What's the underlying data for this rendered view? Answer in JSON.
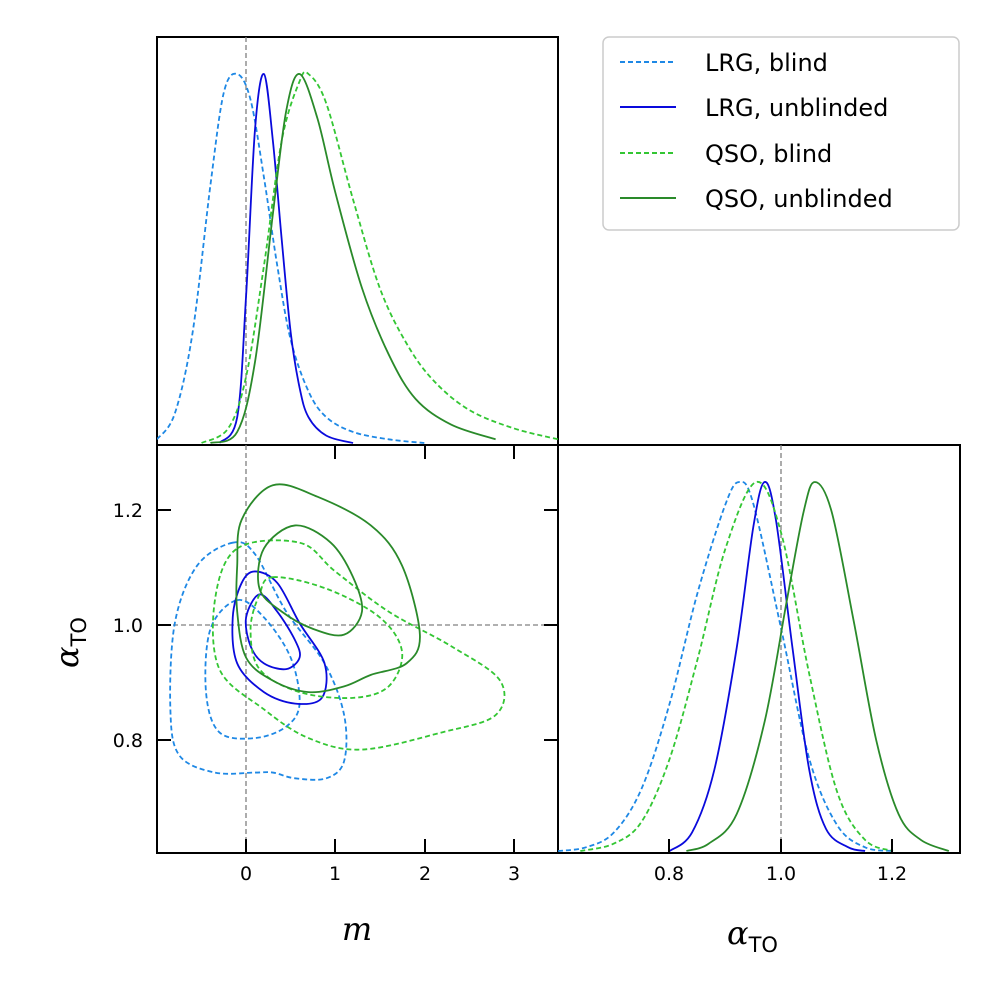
{
  "chart_data": {
    "type": "corner-plot",
    "series": [
      {
        "name": "LRG, blind",
        "color": "#1e88e5",
        "dashed": true
      },
      {
        "name": "LRG, unblinded",
        "color": "#0a0adc",
        "dashed": false
      },
      {
        "name": "QSO, blind",
        "color": "#33c633",
        "dashed": true
      },
      {
        "name": "QSO, unblinded",
        "color": "#2a8a2a",
        "dashed": false
      }
    ],
    "panels": {
      "m_marginal": {
        "xlim": [
          -1.0,
          3.5
        ],
        "reference": 0.0,
        "curves": [
          {
            "series": 0,
            "points": [
              [
                -1.0,
                0.01
              ],
              [
                -0.8,
                0.08
              ],
              [
                -0.6,
                0.3
              ],
              [
                -0.4,
                0.7
              ],
              [
                -0.25,
                0.95
              ],
              [
                -0.1,
                1.0
              ],
              [
                0.05,
                0.93
              ],
              [
                0.2,
                0.72
              ],
              [
                0.35,
                0.48
              ],
              [
                0.5,
                0.28
              ],
              [
                0.7,
                0.14
              ],
              [
                0.9,
                0.07
              ],
              [
                1.2,
                0.03
              ],
              [
                1.6,
                0.01
              ],
              [
                2.0,
                0.0
              ]
            ]
          },
          {
            "series": 1,
            "points": [
              [
                -0.3,
                0.0
              ],
              [
                -0.1,
                0.07
              ],
              [
                0.0,
                0.4
              ],
              [
                0.1,
                0.85
              ],
              [
                0.2,
                1.0
              ],
              [
                0.3,
                0.82
              ],
              [
                0.4,
                0.55
              ],
              [
                0.5,
                0.3
              ],
              [
                0.6,
                0.15
              ],
              [
                0.7,
                0.07
              ],
              [
                0.9,
                0.02
              ],
              [
                1.2,
                0.0
              ]
            ]
          },
          {
            "series": 2,
            "points": [
              [
                -0.5,
                0.0
              ],
              [
                -0.2,
                0.04
              ],
              [
                0.0,
                0.18
              ],
              [
                0.2,
                0.48
              ],
              [
                0.4,
                0.82
              ],
              [
                0.6,
                0.98
              ],
              [
                0.7,
                1.0
              ],
              [
                0.9,
                0.92
              ],
              [
                1.2,
                0.66
              ],
              [
                1.5,
                0.42
              ],
              [
                1.8,
                0.27
              ],
              [
                2.1,
                0.17
              ],
              [
                2.5,
                0.09
              ],
              [
                3.0,
                0.04
              ],
              [
                3.5,
                0.01
              ]
            ]
          },
          {
            "series": 3,
            "points": [
              [
                -0.4,
                0.0
              ],
              [
                -0.1,
                0.03
              ],
              [
                0.1,
                0.22
              ],
              [
                0.3,
                0.62
              ],
              [
                0.45,
                0.9
              ],
              [
                0.6,
                1.0
              ],
              [
                0.8,
                0.88
              ],
              [
                1.0,
                0.68
              ],
              [
                1.3,
                0.42
              ],
              [
                1.6,
                0.24
              ],
              [
                1.9,
                0.12
              ],
              [
                2.3,
                0.05
              ],
              [
                2.8,
                0.01
              ]
            ]
          }
        ]
      },
      "joint": {
        "xlim": [
          -1.0,
          3.5
        ],
        "ylim": [
          0.6,
          1.31
        ],
        "reference": [
          0.0,
          1.0
        ],
        "contours": [
          {
            "series": 0,
            "points": [
              [
                -0.15,
                1.14
              ],
              [
                0.1,
                1.12
              ],
              [
                0.45,
                1.02
              ],
              [
                0.88,
                0.93
              ],
              [
                1.1,
                0.84
              ],
              [
                1.1,
                0.76
              ],
              [
                0.9,
                0.73
              ],
              [
                0.55,
                0.73
              ],
              [
                0.3,
                0.74
              ],
              [
                0.1,
                0.74
              ],
              [
                -0.35,
                0.74
              ],
              [
                -0.75,
                0.77
              ],
              [
                -0.85,
                0.85
              ],
              [
                -0.8,
                1.0
              ],
              [
                -0.55,
                1.1
              ]
            ]
          },
          {
            "series": 0,
            "points": [
              [
                -0.1,
                1.04
              ],
              [
                0.2,
                1.01
              ],
              [
                0.5,
                0.94
              ],
              [
                0.6,
                0.86
              ],
              [
                0.45,
                0.82
              ],
              [
                0.1,
                0.8
              ],
              [
                -0.3,
                0.81
              ],
              [
                -0.45,
                0.88
              ],
              [
                -0.4,
                0.99
              ]
            ]
          },
          {
            "series": 1,
            "points": [
              [
                0.1,
                1.09
              ],
              [
                0.35,
                1.07
              ],
              [
                0.6,
                1.0
              ],
              [
                0.88,
                0.93
              ],
              [
                0.85,
                0.87
              ],
              [
                0.55,
                0.86
              ],
              [
                0.2,
                0.88
              ],
              [
                -0.1,
                0.93
              ],
              [
                -0.15,
                1.01
              ],
              [
                -0.05,
                1.07
              ]
            ]
          },
          {
            "series": 1,
            "points": [
              [
                0.15,
                1.05
              ],
              [
                0.35,
                1.02
              ],
              [
                0.55,
                0.97
              ],
              [
                0.6,
                0.94
              ],
              [
                0.45,
                0.92
              ],
              [
                0.2,
                0.93
              ],
              [
                0.05,
                0.96
              ],
              [
                0.0,
                1.01
              ]
            ]
          },
          {
            "series": 2,
            "points": [
              [
                -0.1,
                1.13
              ],
              [
                0.6,
                1.14
              ],
              [
                1.0,
                1.09
              ],
              [
                1.6,
                1.02
              ],
              [
                2.3,
                0.96
              ],
              [
                2.85,
                0.9
              ],
              [
                2.8,
                0.84
              ],
              [
                2.2,
                0.81
              ],
              [
                1.3,
                0.78
              ],
              [
                0.7,
                0.8
              ],
              [
                0.2,
                0.85
              ],
              [
                -0.3,
                0.92
              ],
              [
                -0.35,
                1.04
              ]
            ]
          },
          {
            "series": 2,
            "points": [
              [
                0.3,
                1.08
              ],
              [
                0.9,
                1.06
              ],
              [
                1.5,
                1.01
              ],
              [
                1.75,
                0.95
              ],
              [
                1.6,
                0.89
              ],
              [
                1.2,
                0.87
              ],
              [
                0.6,
                0.88
              ],
              [
                0.15,
                0.92
              ],
              [
                0.05,
                0.99
              ],
              [
                0.15,
                1.05
              ]
            ]
          },
          {
            "series": 3,
            "points": [
              [
                -0.05,
                1.18
              ],
              [
                0.3,
                1.24
              ],
              [
                0.8,
                1.22
              ],
              [
                1.4,
                1.17
              ],
              [
                1.75,
                1.1
              ],
              [
                1.95,
                0.98
              ],
              [
                1.8,
                0.93
              ],
              [
                1.4,
                0.91
              ],
              [
                1.1,
                0.89
              ],
              [
                0.7,
                0.88
              ],
              [
                0.3,
                0.9
              ],
              [
                0.0,
                0.94
              ],
              [
                -0.1,
                1.02
              ],
              [
                -0.1,
                1.1
              ]
            ]
          },
          {
            "series": 3,
            "points": [
              [
                0.2,
                1.13
              ],
              [
                0.55,
                1.17
              ],
              [
                0.95,
                1.14
              ],
              [
                1.2,
                1.08
              ],
              [
                1.3,
                1.02
              ],
              [
                1.1,
                0.98
              ],
              [
                0.75,
                0.99
              ],
              [
                0.4,
                1.02
              ],
              [
                0.15,
                1.06
              ]
            ]
          }
        ]
      },
      "alpha_marginal": {
        "xlim": [
          0.6,
          1.32
        ],
        "reference": 1.0,
        "curves": [
          {
            "series": 0,
            "points": [
              [
                0.6,
                0.0
              ],
              [
                0.65,
                0.01
              ],
              [
                0.7,
                0.05
              ],
              [
                0.75,
                0.17
              ],
              [
                0.8,
                0.4
              ],
              [
                0.85,
                0.7
              ],
              [
                0.9,
                0.94
              ],
              [
                0.925,
                1.0
              ],
              [
                0.95,
                0.94
              ],
              [
                1.0,
                0.6
              ],
              [
                1.05,
                0.25
              ],
              [
                1.1,
                0.07
              ],
              [
                1.15,
                0.01
              ],
              [
                1.2,
                0.0
              ]
            ]
          },
          {
            "series": 1,
            "points": [
              [
                0.8,
                0.0
              ],
              [
                0.84,
                0.05
              ],
              [
                0.88,
                0.22
              ],
              [
                0.92,
                0.55
              ],
              [
                0.95,
                0.88
              ],
              [
                0.97,
                1.0
              ],
              [
                0.99,
                0.9
              ],
              [
                1.02,
                0.55
              ],
              [
                1.05,
                0.22
              ],
              [
                1.08,
                0.06
              ],
              [
                1.12,
                0.01
              ],
              [
                1.15,
                0.0
              ]
            ]
          },
          {
            "series": 2,
            "points": [
              [
                0.64,
                0.0
              ],
              [
                0.7,
                0.02
              ],
              [
                0.75,
                0.08
              ],
              [
                0.8,
                0.25
              ],
              [
                0.85,
                0.52
              ],
              [
                0.9,
                0.82
              ],
              [
                0.955,
                1.0
              ],
              [
                1.0,
                0.86
              ],
              [
                1.05,
                0.48
              ],
              [
                1.1,
                0.16
              ],
              [
                1.15,
                0.03
              ],
              [
                1.2,
                0.0
              ]
            ]
          },
          {
            "series": 3,
            "points": [
              [
                0.83,
                0.0
              ],
              [
                0.87,
                0.02
              ],
              [
                0.92,
                0.1
              ],
              [
                0.97,
                0.35
              ],
              [
                1.01,
                0.68
              ],
              [
                1.04,
                0.92
              ],
              [
                1.06,
                1.0
              ],
              [
                1.09,
                0.92
              ],
              [
                1.13,
                0.62
              ],
              [
                1.17,
                0.3
              ],
              [
                1.21,
                0.1
              ],
              [
                1.25,
                0.03
              ],
              [
                1.3,
                0.0
              ]
            ]
          }
        ]
      }
    },
    "ticks": {
      "m": [
        "0",
        "1",
        "2",
        "3"
      ],
      "alpha_y": [
        "1.2",
        "1.0",
        "0.8"
      ],
      "alpha_x": [
        "0.8",
        "1.0",
        "1.2"
      ]
    },
    "labels": {
      "m": "m",
      "alpha": "α",
      "alpha_sub": "TO"
    },
    "legend_position": "top-right"
  }
}
